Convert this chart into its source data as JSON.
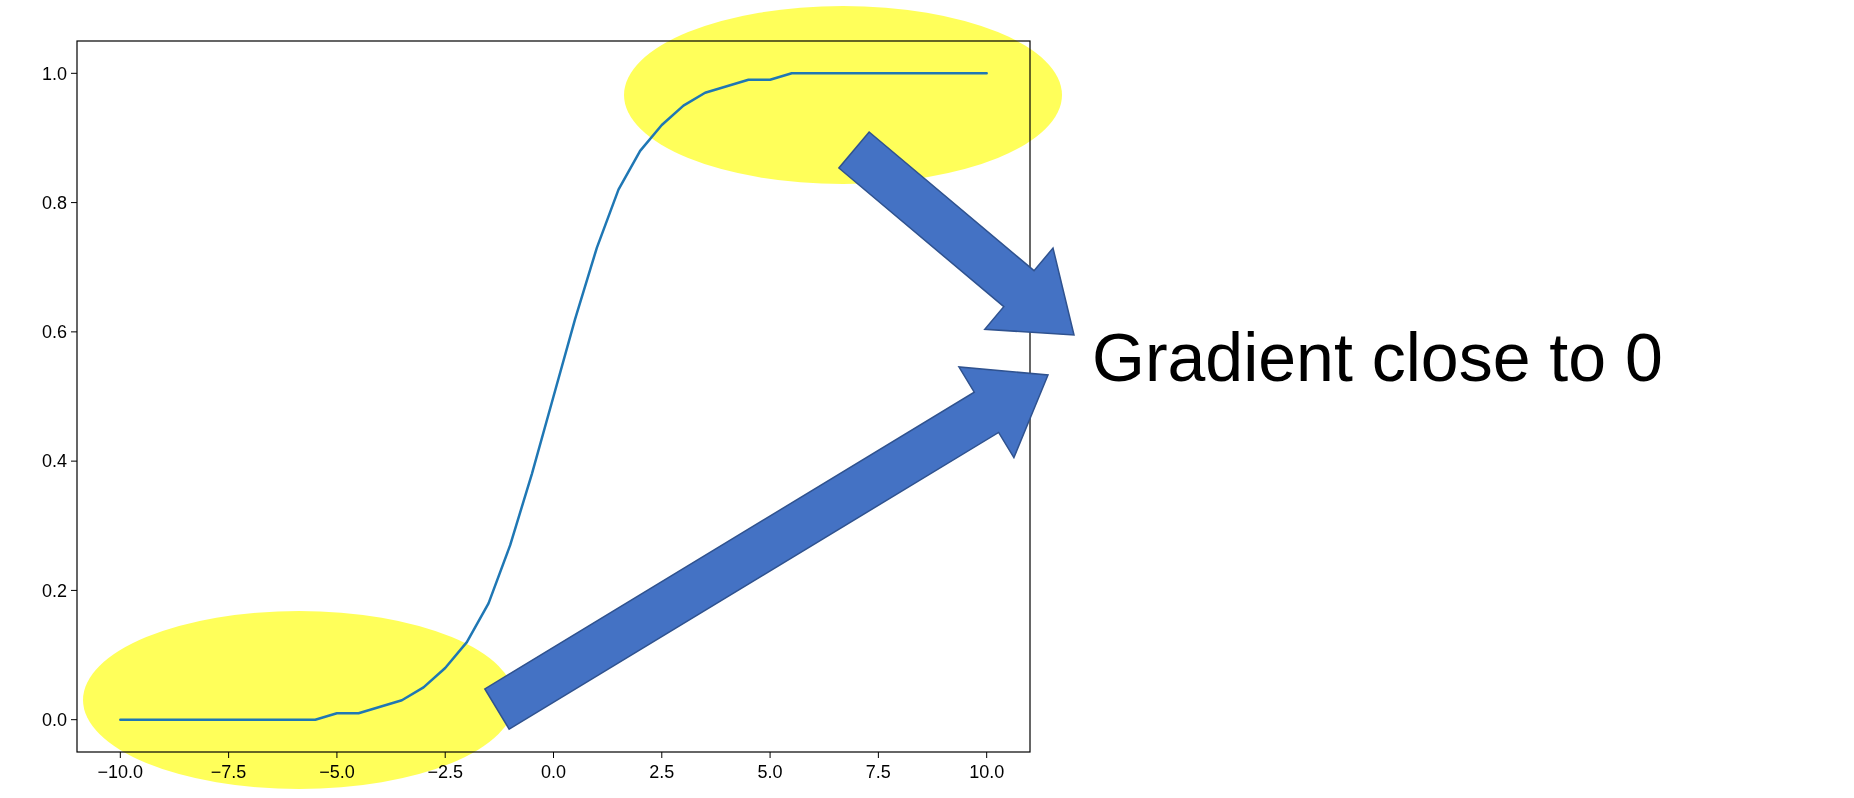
{
  "chart_data": {
    "type": "line",
    "x": [
      -10,
      -9.5,
      -9,
      -8.5,
      -8,
      -7.5,
      -7,
      -6.5,
      -6,
      -5.5,
      -5,
      -4.5,
      -4,
      -3.5,
      -3,
      -2.5,
      -2,
      -1.5,
      -1,
      -0.5,
      0,
      0.5,
      1,
      1.5,
      2,
      2.5,
      3,
      3.5,
      4,
      4.5,
      5,
      5.5,
      6,
      6.5,
      7,
      7.5,
      8,
      8.5,
      9,
      9.5,
      10
    ],
    "series": [
      {
        "color": "#1f77b4",
        "values": [
          0,
          0,
          0,
          0,
          0,
          0,
          0,
          0,
          0,
          0,
          0.01,
          0.01,
          0.02,
          0.03,
          0.05,
          0.08,
          0.12,
          0.18,
          0.27,
          0.38,
          0.5,
          0.62,
          0.73,
          0.82,
          0.88,
          0.92,
          0.95,
          0.97,
          0.98,
          0.99,
          0.99,
          1,
          1,
          1,
          1,
          1,
          1,
          1,
          1,
          1,
          1
        ]
      }
    ],
    "xlim": [
      -11,
      11
    ],
    "xticks": [
      {
        "value": -10,
        "label": "−10.0"
      },
      {
        "value": -7.5,
        "label": "−7.5"
      },
      {
        "value": -5,
        "label": "−5.0"
      },
      {
        "value": -2.5,
        "label": "−2.5"
      },
      {
        "value": 0,
        "label": "0.0"
      },
      {
        "value": 2.5,
        "label": "2.5"
      },
      {
        "value": 5,
        "label": "5.0"
      },
      {
        "value": 7.5,
        "label": "7.5"
      },
      {
        "value": 10,
        "label": "10.0"
      }
    ],
    "ylim": [
      -0.05,
      1.05
    ],
    "yticks": [
      {
        "value": 0,
        "label": "0.0"
      },
      {
        "value": 0.2,
        "label": "0.2"
      },
      {
        "value": 0.4,
        "label": "0.4"
      },
      {
        "value": 0.6,
        "label": "0.6"
      },
      {
        "value": 0.8,
        "label": "0.8"
      },
      {
        "value": 1,
        "label": "1.0"
      }
    ],
    "annotations": [
      "Gradient close to 0"
    ]
  }
}
